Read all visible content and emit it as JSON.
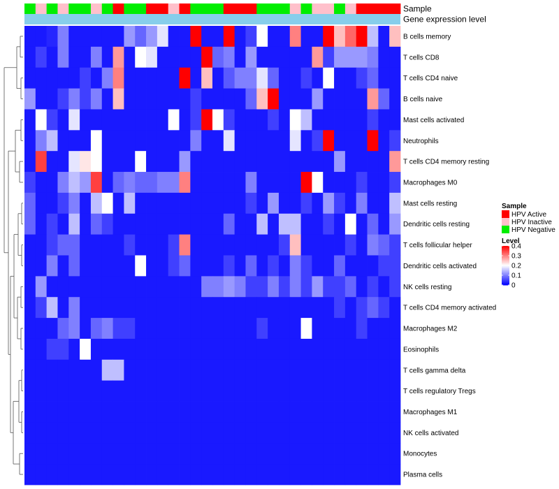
{
  "chart_data": {
    "type": "heatmap",
    "annotation_tracks": [
      {
        "name": "Sample",
        "label": "Sample"
      },
      {
        "name": "Gene expression level",
        "label": "Gene expression level"
      }
    ],
    "sample_groups": [
      "N",
      "I",
      "N",
      "I",
      "N",
      "N",
      "I",
      "N",
      "A",
      "N",
      "N",
      "A",
      "A",
      "I",
      "A",
      "N",
      "N",
      "N",
      "A",
      "A",
      "A",
      "N",
      "N",
      "N",
      "I",
      "N",
      "I",
      "I",
      "N",
      "I",
      "A",
      "A",
      "A",
      "A"
    ],
    "sample_group_names": {
      "A": "HPV Active",
      "I": "HPV Inactive",
      "N": "HPV Negative"
    },
    "sample_colors": {
      "A": "#ff0000",
      "I": "#ffc0cb",
      "N": "#00ee00"
    },
    "expression_bar_color": "#87ceeb",
    "rows": [
      "B cells memory",
      "T cells CD8",
      "T cells CD4 naive",
      "B cells naive",
      "Mast cells activated",
      "Neutrophils",
      "T cells CD4 memory resting",
      "Macrophages M0",
      "Mast cells resting",
      "Dendritic cells resting",
      "T cells follicular helper",
      "Dendritic cells activated",
      "NK cells resting",
      "T cells CD4 memory activated",
      "Macrophages M2",
      "Eosinophils",
      "T cells gamma delta",
      "T cells regulatory  Tregs",
      "Macrophages M1",
      "NK cells activated",
      "Monocytes",
      "Plasma cells"
    ],
    "values": [
      [
        0.02,
        0.02,
        0.03,
        0.1,
        0.02,
        0.02,
        0.02,
        0.02,
        0.02,
        0.12,
        0.08,
        0.12,
        0.18,
        0.02,
        0.02,
        0.4,
        0.02,
        0.02,
        0.4,
        0.02,
        0.05,
        0.2,
        0.02,
        0.02,
        0.3,
        0.02,
        0.02,
        0.4,
        0.25,
        0.32,
        0.4,
        0.15,
        0.02,
        0.25
      ],
      [
        0.02,
        0.05,
        0.02,
        0.1,
        0.02,
        0.02,
        0.1,
        0.02,
        0.28,
        0.02,
        0.2,
        0.18,
        0.02,
        0.02,
        0.02,
        0.02,
        0.4,
        0.08,
        0.1,
        0.02,
        0.12,
        0.02,
        0.02,
        0.02,
        0.02,
        0.02,
        0.28,
        0.05,
        0.12,
        0.12,
        0.12,
        0.1,
        0.02,
        0.02
      ],
      [
        0.02,
        0.02,
        0.02,
        0.02,
        0.02,
        0.05,
        0.02,
        0.1,
        0.3,
        0.02,
        0.02,
        0.02,
        0.02,
        0.02,
        0.4,
        0.02,
        0.25,
        0.02,
        0.07,
        0.1,
        0.1,
        0.18,
        0.08,
        0.02,
        0.02,
        0.05,
        0.02,
        0.2,
        0.02,
        0.02,
        0.05,
        0.08,
        0.02,
        0.02
      ],
      [
        0.12,
        0.02,
        0.02,
        0.05,
        0.1,
        0.05,
        0.1,
        0.02,
        0.25,
        0.02,
        0.02,
        0.02,
        0.02,
        0.02,
        0.02,
        0.05,
        0.02,
        0.02,
        0.02,
        0.02,
        0.08,
        0.25,
        0.4,
        0.02,
        0.02,
        0.02,
        0.12,
        0.02,
        0.02,
        0.02,
        0.02,
        0.28,
        0.08,
        0.02
      ],
      [
        0.02,
        0.2,
        0.05,
        0.02,
        0.18,
        0.02,
        0.02,
        0.02,
        0.02,
        0.02,
        0.02,
        0.02,
        0.02,
        0.2,
        0.02,
        0.05,
        0.4,
        0.2,
        0.05,
        0.02,
        0.02,
        0.02,
        0.05,
        0.02,
        0.2,
        0.15,
        0.02,
        0.02,
        0.02,
        0.02,
        0.02,
        0.05,
        0.02,
        0.02
      ],
      [
        0.02,
        0.1,
        0.15,
        0.02,
        0.02,
        0.02,
        0.2,
        0.02,
        0.02,
        0.02,
        0.02,
        0.02,
        0.02,
        0.02,
        0.02,
        0.1,
        0.02,
        0.02,
        0.18,
        0.02,
        0.02,
        0.02,
        0.02,
        0.02,
        0.18,
        0.02,
        0.05,
        0.4,
        0.02,
        0.02,
        0.02,
        0.4,
        0.02,
        0.05
      ],
      [
        0.02,
        0.35,
        0.02,
        0.02,
        0.18,
        0.22,
        0.2,
        0.02,
        0.02,
        0.02,
        0.2,
        0.02,
        0.02,
        0.02,
        0.12,
        0.02,
        0.02,
        0.02,
        0.02,
        0.02,
        0.02,
        0.02,
        0.02,
        0.02,
        0.02,
        0.02,
        0.02,
        0.02,
        0.12,
        0.02,
        0.02,
        0.02,
        0.02,
        0.28
      ],
      [
        0.05,
        0.02,
        0.02,
        0.1,
        0.15,
        0.12,
        0.35,
        0.02,
        0.08,
        0.1,
        0.08,
        0.08,
        0.1,
        0.1,
        0.3,
        0.02,
        0.02,
        0.02,
        0.02,
        0.02,
        0.1,
        0.02,
        0.02,
        0.02,
        0.02,
        0.4,
        0.2,
        0.02,
        0.02,
        0.02,
        0.05,
        0.02,
        0.02,
        0.05
      ],
      [
        0.08,
        0.02,
        0.02,
        0.05,
        0.1,
        0.02,
        0.15,
        0.2,
        0.02,
        0.15,
        0.02,
        0.02,
        0.02,
        0.02,
        0.02,
        0.02,
        0.02,
        0.02,
        0.02,
        0.02,
        0.05,
        0.02,
        0.12,
        0.02,
        0.02,
        0.05,
        0.02,
        0.12,
        0.05,
        0.02,
        0.1,
        0.02,
        0.02,
        0.15
      ],
      [
        0.08,
        0.02,
        0.05,
        0.02,
        0.15,
        0.02,
        0.08,
        0.05,
        0.02,
        0.02,
        0.02,
        0.02,
        0.02,
        0.02,
        0.02,
        0.02,
        0.02,
        0.02,
        0.08,
        0.02,
        0.02,
        0.15,
        0.02,
        0.15,
        0.15,
        0.02,
        0.02,
        0.05,
        0.02,
        0.2,
        0.02,
        0.08,
        0.02,
        0.12
      ],
      [
        0.02,
        0.02,
        0.05,
        0.08,
        0.08,
        0.02,
        0.02,
        0.02,
        0.02,
        0.05,
        0.02,
        0.02,
        0.02,
        0.05,
        0.3,
        0.02,
        0.02,
        0.02,
        0.02,
        0.02,
        0.02,
        0.02,
        0.02,
        0.05,
        0.25,
        0.02,
        0.02,
        0.02,
        0.02,
        0.05,
        0.02,
        0.1,
        0.08,
        0.05
      ],
      [
        0.02,
        0.02,
        0.1,
        0.02,
        0.08,
        0.02,
        0.02,
        0.02,
        0.02,
        0.02,
        0.2,
        0.02,
        0.02,
        0.05,
        0.08,
        0.02,
        0.02,
        0.02,
        0.05,
        0.02,
        0.08,
        0.02,
        0.05,
        0.02,
        0.1,
        0.05,
        0.02,
        0.02,
        0.08,
        0.02,
        0.02,
        0.02,
        0.05,
        0.05
      ],
      [
        0.02,
        0.12,
        0.02,
        0.02,
        0.02,
        0.02,
        0.02,
        0.02,
        0.02,
        0.02,
        0.02,
        0.02,
        0.02,
        0.02,
        0.02,
        0.02,
        0.1,
        0.1,
        0.12,
        0.1,
        0.05,
        0.05,
        0.1,
        0.05,
        0.1,
        0.05,
        0.12,
        0.05,
        0.05,
        0.08,
        0.02,
        0.05,
        0.02,
        0.05
      ],
      [
        0.02,
        0.05,
        0.15,
        0.02,
        0.1,
        0.02,
        0.02,
        0.02,
        0.02,
        0.02,
        0.02,
        0.02,
        0.02,
        0.02,
        0.02,
        0.02,
        0.02,
        0.02,
        0.02,
        0.02,
        0.02,
        0.02,
        0.02,
        0.02,
        0.02,
        0.02,
        0.02,
        0.02,
        0.05,
        0.02,
        0.05,
        0.08,
        0.05,
        0.02
      ],
      [
        0.02,
        0.02,
        0.02,
        0.08,
        0.1,
        0.02,
        0.08,
        0.1,
        0.05,
        0.05,
        0.02,
        0.02,
        0.02,
        0.02,
        0.02,
        0.02,
        0.02,
        0.02,
        0.02,
        0.02,
        0.02,
        0.05,
        0.02,
        0.02,
        0.02,
        0.2,
        0.02,
        0.02,
        0.02,
        0.02,
        0.05,
        0.02,
        0.02,
        0.02
      ],
      [
        0.02,
        0.02,
        0.05,
        0.05,
        0.02,
        0.2,
        0.02,
        0.02,
        0.02,
        0.02,
        0.02,
        0.02,
        0.02,
        0.02,
        0.02,
        0.02,
        0.02,
        0.02,
        0.02,
        0.02,
        0.02,
        0.02,
        0.02,
        0.02,
        0.02,
        0.02,
        0.02,
        0.02,
        0.02,
        0.02,
        0.02,
        0.02,
        0.02,
        0.02
      ],
      [
        0.02,
        0.02,
        0.02,
        0.02,
        0.02,
        0.02,
        0.02,
        0.15,
        0.15,
        0.02,
        0.02,
        0.02,
        0.02,
        0.02,
        0.02,
        0.02,
        0.02,
        0.02,
        0.02,
        0.02,
        0.02,
        0.02,
        0.02,
        0.02,
        0.02,
        0.02,
        0.02,
        0.02,
        0.02,
        0.02,
        0.02,
        0.02,
        0.02,
        0.02
      ],
      [
        0.02,
        0.02,
        0.02,
        0.02,
        0.02,
        0.02,
        0.02,
        0.02,
        0.02,
        0.02,
        0.02,
        0.02,
        0.02,
        0.02,
        0.02,
        0.02,
        0.02,
        0.02,
        0.02,
        0.02,
        0.02,
        0.02,
        0.02,
        0.02,
        0.02,
        0.02,
        0.02,
        0.02,
        0.02,
        0.02,
        0.02,
        0.02,
        0.02,
        0.02
      ],
      [
        0.02,
        0.02,
        0.02,
        0.02,
        0.02,
        0.02,
        0.02,
        0.02,
        0.02,
        0.02,
        0.02,
        0.02,
        0.02,
        0.02,
        0.02,
        0.02,
        0.02,
        0.02,
        0.02,
        0.02,
        0.02,
        0.02,
        0.02,
        0.02,
        0.02,
        0.02,
        0.02,
        0.02,
        0.02,
        0.02,
        0.02,
        0.02,
        0.02,
        0.02
      ],
      [
        0.02,
        0.02,
        0.02,
        0.02,
        0.02,
        0.02,
        0.02,
        0.02,
        0.02,
        0.02,
        0.02,
        0.02,
        0.02,
        0.02,
        0.02,
        0.02,
        0.02,
        0.02,
        0.02,
        0.02,
        0.02,
        0.02,
        0.02,
        0.02,
        0.02,
        0.02,
        0.02,
        0.02,
        0.02,
        0.02,
        0.02,
        0.02,
        0.02,
        0.02
      ],
      [
        0.02,
        0.02,
        0.02,
        0.02,
        0.02,
        0.02,
        0.02,
        0.02,
        0.02,
        0.02,
        0.02,
        0.02,
        0.02,
        0.02,
        0.02,
        0.02,
        0.02,
        0.02,
        0.02,
        0.02,
        0.02,
        0.02,
        0.02,
        0.02,
        0.02,
        0.02,
        0.02,
        0.02,
        0.02,
        0.02,
        0.02,
        0.02,
        0.02,
        0.02
      ],
      [
        0.02,
        0.02,
        0.02,
        0.02,
        0.02,
        0.02,
        0.02,
        0.02,
        0.02,
        0.02,
        0.02,
        0.02,
        0.02,
        0.02,
        0.02,
        0.02,
        0.02,
        0.02,
        0.02,
        0.02,
        0.02,
        0.02,
        0.02,
        0.02,
        0.02,
        0.02,
        0.02,
        0.02,
        0.02,
        0.02,
        0.02,
        0.02,
        0.02,
        0.02
      ]
    ],
    "legend_sample": {
      "title": "Sample",
      "entries": [
        {
          "label": "HPV Active",
          "color": "#ff0000"
        },
        {
          "label": "HPV Inactive",
          "color": "#ffc0cb"
        },
        {
          "label": "HPV Negative",
          "color": "#00ee00"
        }
      ]
    },
    "legend_level": {
      "title": "Level",
      "ticks": [
        {
          "value": 0.4,
          "label": "0.4"
        },
        {
          "value": 0.3,
          "label": "0.3"
        },
        {
          "value": 0.2,
          "label": "0.2"
        },
        {
          "value": 0.1,
          "label": "0.1"
        },
        {
          "value": 0,
          "label": "0"
        }
      ],
      "range": [
        0,
        0.4
      ],
      "colors": {
        "low": "#0000ff",
        "mid": "#ffffff",
        "high": "#ff0000"
      }
    },
    "dendrogram": "row clustering tree on left"
  }
}
